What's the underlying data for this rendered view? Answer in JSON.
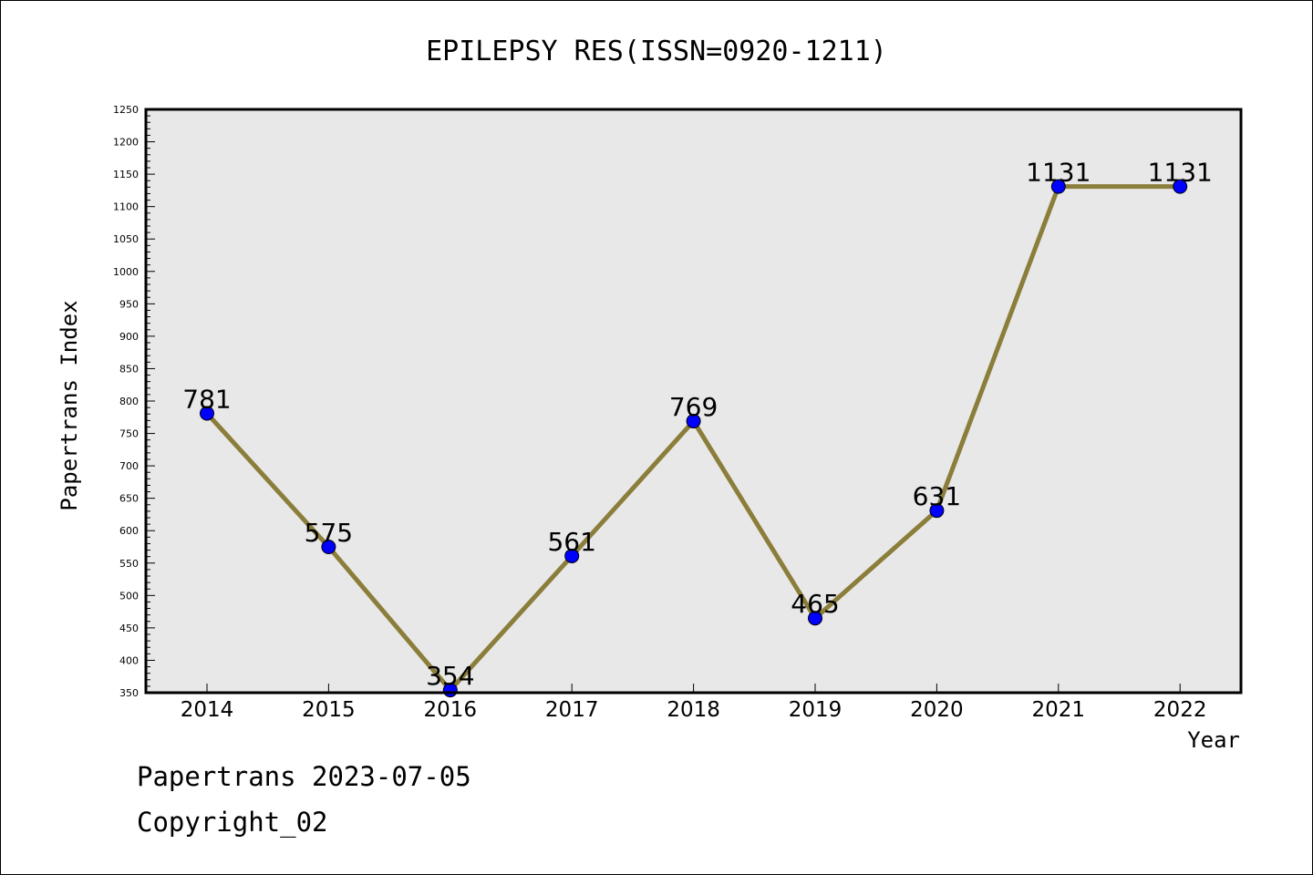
{
  "chart_data": {
    "type": "line",
    "title": "EPILEPSY RES(ISSN=0920-1211)",
    "xlabel": "Year",
    "ylabel": "Papertrans Index",
    "categories": [
      "2014",
      "2015",
      "2016",
      "2017",
      "2018",
      "2019",
      "2020",
      "2021",
      "2022"
    ],
    "series": [
      {
        "values": [
          781,
          575,
          354,
          561,
          769,
          465,
          631,
          1131,
          1131
        ]
      }
    ],
    "ylim": [
      350,
      1250
    ],
    "ytick_step": 50,
    "grid": false,
    "legend": "none",
    "line_color": "#8b7d3a",
    "marker_color": "#0000ff",
    "plot_background": "#e8e8e8"
  },
  "footer": {
    "line1": "Papertrans 2023-07-05",
    "line2": "Copyright_02"
  }
}
